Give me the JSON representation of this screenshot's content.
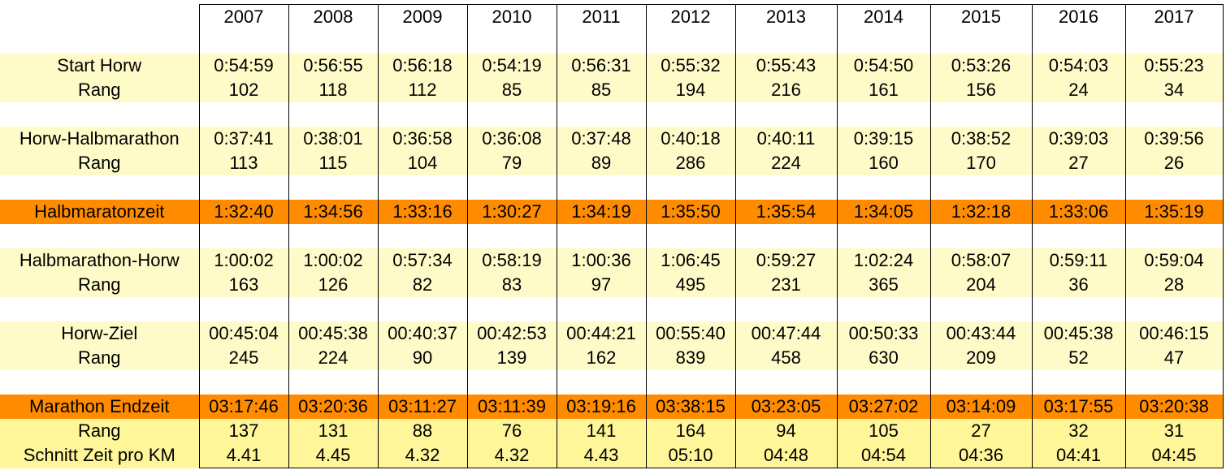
{
  "years": [
    "2007",
    "2008",
    "2009",
    "2010",
    "2011",
    "2012",
    "2013",
    "2014",
    "2015",
    "2016",
    "2017"
  ],
  "rows": [
    {
      "label": "Start Horw",
      "values": [
        "0:54:59",
        "0:56:55",
        "0:56:18",
        "0:54:19",
        "0:56:31",
        "0:55:32",
        "0:55:43",
        "0:54:50",
        "0:53:26",
        "0:54:03",
        "0:55:23"
      ]
    },
    {
      "label": "Rang",
      "values": [
        "102",
        "118",
        "112",
        "85",
        "85",
        "194",
        "216",
        "161",
        "156",
        "24",
        "34"
      ]
    },
    {
      "label": "Horw-Halbmarathon",
      "values": [
        "0:37:41",
        "0:38:01",
        "0:36:58",
        "0:36:08",
        "0:37:48",
        "0:40:18",
        "0:40:11",
        "0:39:15",
        "0:38:52",
        "0:39:03",
        "0:39:56"
      ]
    },
    {
      "label": "Rang",
      "values": [
        "113",
        "115",
        "104",
        "79",
        "89",
        "286",
        "224",
        "160",
        "170",
        "27",
        "26"
      ]
    },
    {
      "label": "Halbmaratonzeit",
      "values": [
        "1:32:40",
        "1:34:56",
        "1:33:16",
        "1:30:27",
        "1:34:19",
        "1:35:50",
        "1:35:54",
        "1:34:05",
        "1:32:18",
        "1:33:06",
        "1:35:19"
      ]
    },
    {
      "label": "Halbmarathon-Horw",
      "values": [
        "1:00:02",
        "1:00:02",
        "0:57:34",
        "0:58:19",
        "1:00:36",
        "1:06:45",
        "0:59:27",
        "1:02:24",
        "0:58:07",
        "0:59:11",
        "0:59:04"
      ]
    },
    {
      "label": "Rang",
      "values": [
        "163",
        "126",
        "82",
        "83",
        "97",
        "495",
        "231",
        "365",
        "204",
        "36",
        "28"
      ]
    },
    {
      "label": "Horw-Ziel",
      "values": [
        "00:45:04",
        "00:45:38",
        "00:40:37",
        "00:42:53",
        "00:44:21",
        "00:55:40",
        "00:47:44",
        "00:50:33",
        "00:43:44",
        "00:45:38",
        "00:46:15"
      ]
    },
    {
      "label": "Rang",
      "values": [
        "245",
        "224",
        "90",
        "139",
        "162",
        "839",
        "458",
        "630",
        "209",
        "52",
        "47"
      ]
    },
    {
      "label": "Marathon Endzeit",
      "values": [
        "03:17:46",
        "03:20:36",
        "03:11:27",
        "03:11:39",
        "03:19:16",
        "03:38:15",
        "03:23:05",
        "03:27:02",
        "03:14:09",
        "03:17:55",
        "03:20:38"
      ]
    },
    {
      "label": "Rang",
      "values": [
        "137",
        "131",
        "88",
        "76",
        "141",
        "164",
        "94",
        "105",
        "27",
        "32",
        "31"
      ]
    },
    {
      "label": "Schnitt Zeit pro KM",
      "values": [
        "4.41",
        "4.45",
        "4.32",
        "4.32",
        "4.43",
        "05:10",
        "04:48",
        "04:54",
        "04:36",
        "04:41",
        "04:45"
      ]
    }
  ],
  "colors": {
    "light_band": "#fffbc8",
    "highlight_band": "#ff8c00",
    "final_band": "#fff599"
  }
}
